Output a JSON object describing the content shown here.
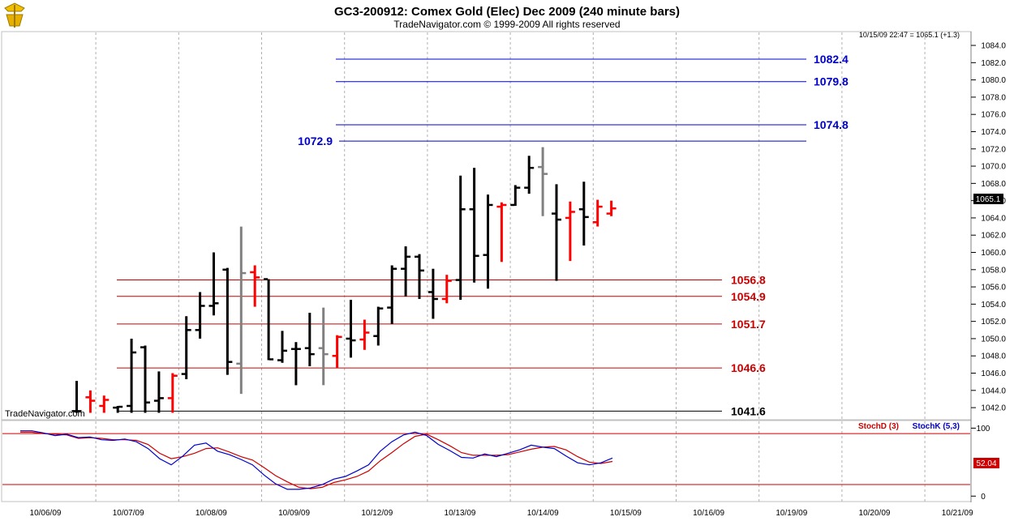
{
  "header": {
    "title": "GC3-200912:  Comex Gold (Elec) Dec 2009  (240 minute bars)",
    "subtitle": "TradeNavigator.com © 1999-2009 All rights reserved",
    "status": "10/15/09 22:47 = 1065.1 (+1.3)",
    "watermark": "TradeNavigator.com",
    "last_price_tag": "1065.1"
  },
  "colors": {
    "up": "#ff0000",
    "down": "#000000",
    "neutral": "#808080",
    "projection": "#0000cc",
    "support": "#cc0000",
    "stochD": "#cc0000",
    "stochK": "#0000cc"
  },
  "chart_data": [
    {
      "type": "ohlc",
      "title": "GC3-200912:  Comex Gold (Elec) Dec 2009  (240 minute bars)",
      "ylim": [
        1040.6,
        1085.6
      ],
      "yticks": [
        1042.0,
        1044.0,
        1046.0,
        1048.0,
        1050.0,
        1052.0,
        1054.0,
        1056.0,
        1058.0,
        1060.0,
        1062.0,
        1064.0,
        1066.0,
        1068.0,
        1070.0,
        1072.0,
        1074.0,
        1076.0,
        1078.0,
        1080.0,
        1082.0,
        1084.0
      ],
      "x_dates": [
        "10/06/09",
        "10/07/09",
        "10/08/09",
        "10/09/09",
        "10/12/09",
        "10/13/09",
        "10/14/09",
        "10/15/09",
        "10/16/09",
        "10/19/09",
        "10/20/09",
        "10/21/09"
      ],
      "grid": true,
      "bars": [
        {
          "o": 1041.6,
          "h": 1045.1,
          "l": 1041.4,
          "c": 1041.6,
          "color": "black"
        },
        {
          "o": 1043.2,
          "h": 1044.0,
          "l": 1041.4,
          "c": 1042.8,
          "color": "red"
        },
        {
          "o": 1042.2,
          "h": 1043.4,
          "l": 1041.4,
          "c": 1042.9,
          "color": "red"
        },
        {
          "o": 1042.0,
          "h": 1042.2,
          "l": 1041.4,
          "c": 1042.1,
          "color": "black"
        },
        {
          "o": 1042.2,
          "h": 1050.0,
          "l": 1041.4,
          "c": 1048.4,
          "color": "black"
        },
        {
          "o": 1049.0,
          "h": 1049.2,
          "l": 1041.4,
          "c": 1042.6,
          "color": "black"
        },
        {
          "o": 1042.8,
          "h": 1046.2,
          "l": 1041.4,
          "c": 1043.1,
          "color": "black"
        },
        {
          "o": 1043.1,
          "h": 1046.0,
          "l": 1041.4,
          "c": 1045.7,
          "color": "red"
        },
        {
          "o": 1045.9,
          "h": 1052.6,
          "l": 1045.3,
          "c": 1051.0,
          "color": "black"
        },
        {
          "o": 1051.0,
          "h": 1055.4,
          "l": 1050.0,
          "c": 1053.8,
          "color": "black"
        },
        {
          "o": 1053.8,
          "h": 1060.0,
          "l": 1052.7,
          "c": 1054.1,
          "color": "black"
        },
        {
          "o": 1058.0,
          "h": 1058.2,
          "l": 1045.8,
          "c": 1047.3,
          "color": "black"
        },
        {
          "o": 1047.1,
          "h": 1063.0,
          "l": 1043.6,
          "c": 1057.6,
          "color": "gray"
        },
        {
          "o": 1057.7,
          "h": 1058.5,
          "l": 1053.7,
          "c": 1057.1,
          "color": "red"
        },
        {
          "o": 1056.9,
          "h": 1056.9,
          "l": 1047.5,
          "c": 1047.6,
          "color": "black"
        },
        {
          "o": 1047.5,
          "h": 1050.9,
          "l": 1047.2,
          "c": 1048.6,
          "color": "black"
        },
        {
          "o": 1048.8,
          "h": 1049.6,
          "l": 1044.6,
          "c": 1048.8,
          "color": "black"
        },
        {
          "o": 1048.9,
          "h": 1053.0,
          "l": 1046.8,
          "c": 1048.2,
          "color": "black"
        },
        {
          "o": 1048.9,
          "h": 1053.6,
          "l": 1044.6,
          "c": 1048.2,
          "color": "gray"
        },
        {
          "o": 1048.0,
          "h": 1050.4,
          "l": 1046.6,
          "c": 1050.2,
          "color": "red"
        },
        {
          "o": 1050.0,
          "h": 1054.5,
          "l": 1047.8,
          "c": 1049.8,
          "color": "black"
        },
        {
          "o": 1049.9,
          "h": 1052.2,
          "l": 1048.7,
          "c": 1050.7,
          "color": "red"
        },
        {
          "o": 1050.3,
          "h": 1053.7,
          "l": 1049.2,
          "c": 1053.5,
          "color": "black"
        },
        {
          "o": 1053.6,
          "h": 1058.5,
          "l": 1051.7,
          "c": 1058.1,
          "color": "black"
        },
        {
          "o": 1058.1,
          "h": 1060.7,
          "l": 1054.9,
          "c": 1059.5,
          "color": "black"
        },
        {
          "o": 1059.5,
          "h": 1059.8,
          "l": 1054.6,
          "c": 1057.9,
          "color": "black"
        },
        {
          "o": 1055.4,
          "h": 1058.1,
          "l": 1052.3,
          "c": 1054.6,
          "color": "black"
        },
        {
          "o": 1054.6,
          "h": 1057.4,
          "l": 1054.1,
          "c": 1056.7,
          "color": "red"
        },
        {
          "o": 1056.8,
          "h": 1068.9,
          "l": 1054.5,
          "c": 1065.0,
          "color": "black"
        },
        {
          "o": 1065.0,
          "h": 1069.8,
          "l": 1056.5,
          "c": 1059.6,
          "color": "black"
        },
        {
          "o": 1059.7,
          "h": 1066.7,
          "l": 1055.8,
          "c": 1065.5,
          "color": "black"
        },
        {
          "o": 1065.3,
          "h": 1065.8,
          "l": 1058.9,
          "c": 1065.5,
          "color": "red"
        },
        {
          "o": 1065.5,
          "h": 1067.8,
          "l": 1065.4,
          "c": 1067.5,
          "color": "black"
        },
        {
          "o": 1067.5,
          "h": 1071.2,
          "l": 1066.8,
          "c": 1069.8,
          "color": "black"
        },
        {
          "o": 1069.9,
          "h": 1072.2,
          "l": 1064.2,
          "c": 1069.1,
          "color": "gray"
        },
        {
          "o": 1064.5,
          "h": 1067.9,
          "l": 1056.7,
          "c": 1063.8,
          "color": "black"
        },
        {
          "o": 1064.0,
          "h": 1065.9,
          "l": 1059.0,
          "c": 1064.7,
          "color": "red"
        },
        {
          "o": 1065.0,
          "h": 1068.2,
          "l": 1060.8,
          "c": 1064.1,
          "color": "black"
        },
        {
          "o": 1063.5,
          "h": 1066.1,
          "l": 1063.0,
          "c": 1065.3,
          "color": "red"
        },
        {
          "o": 1064.5,
          "h": 1066.0,
          "l": 1064.2,
          "c": 1065.1,
          "color": "red"
        }
      ],
      "levels": [
        {
          "label": "1082.4",
          "value": 1082.4,
          "role": "projection",
          "extent": "upper"
        },
        {
          "label": "1079.8",
          "value": 1079.8,
          "role": "projection",
          "extent": "upper"
        },
        {
          "label": "1074.8",
          "value": 1074.8,
          "role": "projection",
          "extent": "upper"
        },
        {
          "label": "1072.9",
          "value": 1072.9,
          "role": "projection",
          "extent": "label-left"
        },
        {
          "label": "1056.8",
          "value": 1056.8,
          "role": "support",
          "extent": "lower"
        },
        {
          "label": "1054.9",
          "value": 1054.9,
          "role": "support",
          "extent": "lower"
        },
        {
          "label": "1051.7",
          "value": 1051.7,
          "role": "support",
          "extent": "lower"
        },
        {
          "label": "1046.6",
          "value": 1046.6,
          "role": "support",
          "extent": "lower"
        },
        {
          "label": "1041.6",
          "value": 1041.6,
          "role": "base",
          "extent": "lower"
        }
      ]
    },
    {
      "type": "line",
      "title": "",
      "ylim": [
        -8,
        110
      ],
      "yticks": [
        0,
        100
      ],
      "reference_lines": [
        92,
        17
      ],
      "series": [
        {
          "name": "StochD (3)",
          "color": "#cc0000",
          "values": [
            94,
            94,
            92,
            91,
            90,
            85,
            86,
            85,
            83,
            83,
            82,
            76,
            63,
            55,
            58,
            63,
            70,
            71,
            65,
            58,
            53,
            42,
            30,
            21,
            13,
            11,
            13,
            20,
            24,
            29,
            37,
            52,
            64,
            77,
            88,
            91,
            83,
            74,
            64,
            60,
            60,
            60,
            61,
            65,
            69,
            72,
            73,
            68,
            58,
            50,
            48,
            51
          ]
        },
        {
          "name": "StochK (5,3)",
          "color": "#0000cc",
          "values": [
            96,
            96,
            93,
            89,
            91,
            86,
            87,
            83,
            82,
            84,
            80,
            70,
            55,
            46,
            59,
            75,
            78,
            66,
            61,
            54,
            46,
            31,
            18,
            10,
            10,
            12,
            17,
            25,
            29,
            37,
            46,
            66,
            80,
            90,
            94,
            89,
            76,
            67,
            57,
            56,
            62,
            58,
            63,
            68,
            75,
            72,
            70,
            59,
            49,
            46,
            49,
            56
          ]
        }
      ],
      "last_value_label": "52.04"
    }
  ]
}
